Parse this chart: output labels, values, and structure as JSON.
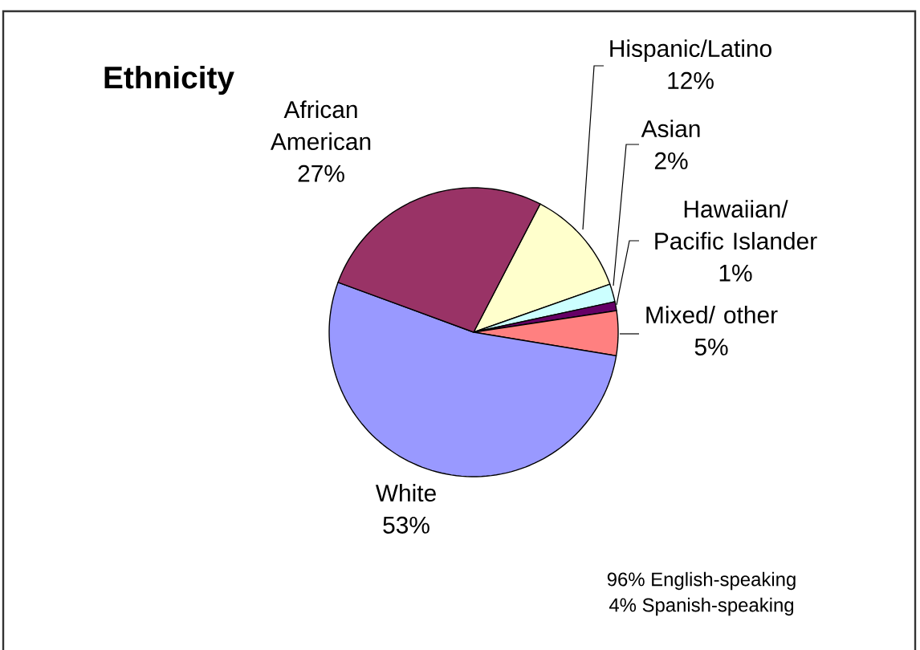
{
  "chart_data": {
    "type": "pie",
    "title": "Ethnicity",
    "categories": [
      "Hispanic/Latino",
      "Asian",
      "Hawaiian/ Pacific Islander",
      "Mixed/ other",
      "White",
      "African American"
    ],
    "values": [
      12,
      2,
      1,
      5,
      53,
      27
    ],
    "value_labels": [
      "12%",
      "2%",
      "1%",
      "5%",
      "53%",
      "27%"
    ],
    "colors": [
      "#ffffcc",
      "#ccffff",
      "#660066",
      "#ff8080",
      "#9999ff",
      "#993366"
    ],
    "annotations": [
      "96% English-speaking",
      "4% Spanish-speaking"
    ]
  }
}
